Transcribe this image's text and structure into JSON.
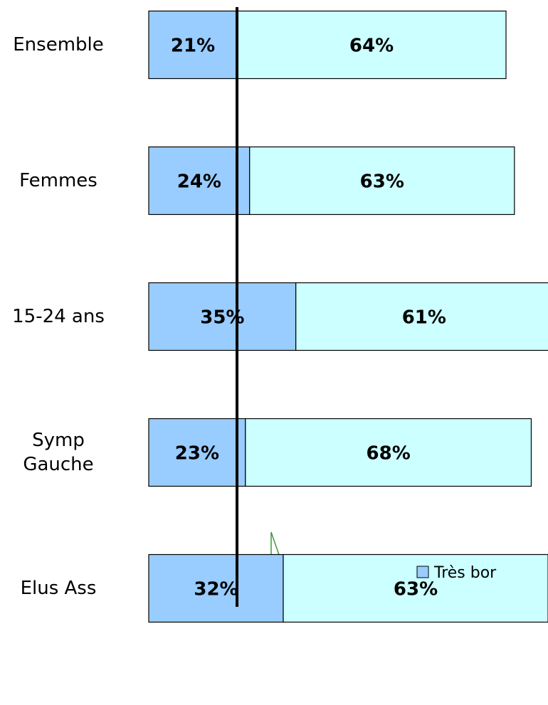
{
  "chart_data": {
    "type": "stacked_barh",
    "categories": [
      "Ensemble",
      "Femmes",
      "15-24 ans",
      "Symp\nGauche",
      "Elus Ass"
    ],
    "series": [
      {
        "name": "Très bor",
        "color": "#99ccff",
        "values": [
          21,
          24,
          35,
          23,
          32
        ],
        "value_labels": [
          "21%",
          "24%",
          "35%",
          "23%",
          "32%"
        ]
      },
      {
        "color": "#ccffff",
        "values": [
          64,
          63,
          61,
          68,
          63
        ],
        "value_labels": [
          "64%",
          "63%",
          "61%",
          "68%",
          "63%"
        ]
      }
    ],
    "xlim": [
      0,
      95
    ],
    "reference_line": 21
  }
}
